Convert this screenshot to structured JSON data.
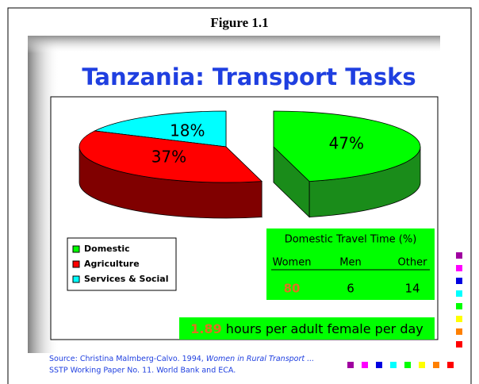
{
  "figure_label": "Figure 1.1",
  "chart_data": {
    "type": "pie",
    "title": "Tanzania: Transport Tasks",
    "categories": [
      "Domestic",
      "Agriculture",
      "Services & Social"
    ],
    "values": [
      47,
      37,
      18
    ],
    "value_labels": [
      "47%",
      "37%",
      "18%"
    ],
    "colors": [
      "#00ff00",
      "#ff0000",
      "#00ffff"
    ],
    "side_colors": [
      "#1a8c1a",
      "#800000",
      "#008080"
    ]
  },
  "travel_time": {
    "title": "Domestic Travel Time (%)",
    "columns": [
      "Women",
      "Men",
      "Other"
    ],
    "values": [
      80,
      6,
      14
    ]
  },
  "summary": {
    "value": 1.89,
    "text": "hours per adult female per day"
  },
  "source": {
    "line1": "Source: Christina Malmberg-Calvo. 1994,",
    "title": "Women in Rural Transport ...",
    "line2": "SSTP Working Paper No. 11. World Bank and ECA."
  }
}
